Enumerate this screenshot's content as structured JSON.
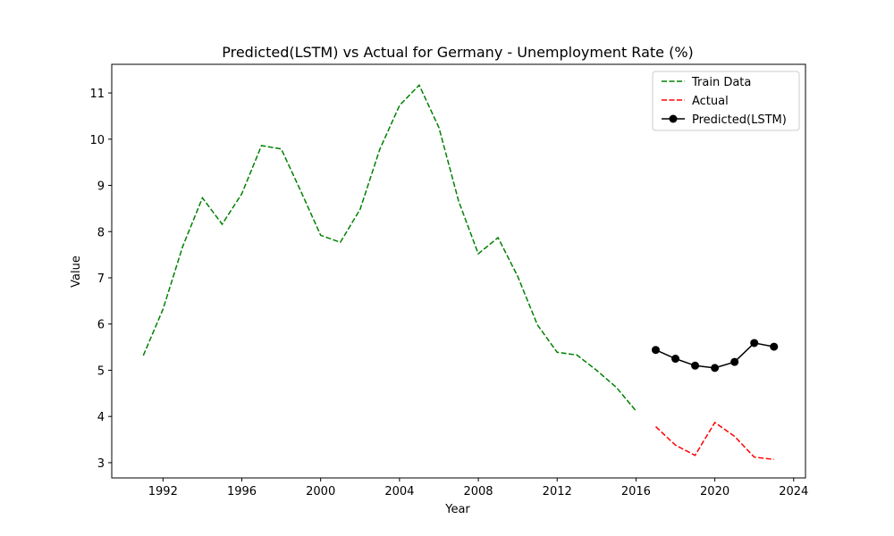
{
  "chart_data": {
    "type": "line",
    "title": "Predicted(LSTM) vs Actual for Germany - Unemployment Rate (%)",
    "xlabel": "Year",
    "ylabel": "Value",
    "xlim": [
      1989.4,
      2024.6
    ],
    "ylim": [
      2.67,
      11.62
    ],
    "x_ticks": [
      1992,
      1996,
      2000,
      2004,
      2008,
      2012,
      2016,
      2020,
      2024
    ],
    "y_ticks": [
      3,
      4,
      5,
      6,
      7,
      8,
      9,
      10,
      11
    ],
    "grid": false,
    "legend_position": "top-right",
    "series": [
      {
        "name": "Train Data",
        "color": "#008000",
        "style": "dashed",
        "marker": "none",
        "x": [
          1991,
          1992,
          1993,
          1994,
          1995,
          1996,
          1997,
          1998,
          1999,
          2000,
          2001,
          2002,
          2003,
          2004,
          2005,
          2006,
          2007,
          2008,
          2009,
          2010,
          2011,
          2012,
          2013,
          2014,
          2015,
          2016
        ],
        "y": [
          5.32,
          6.32,
          7.68,
          8.73,
          8.16,
          8.82,
          9.86,
          9.79,
          8.87,
          7.92,
          7.77,
          8.48,
          9.78,
          10.73,
          11.17,
          10.25,
          8.66,
          7.52,
          7.87,
          7.03,
          5.98,
          5.39,
          5.33,
          5.0,
          4.63,
          4.12
        ]
      },
      {
        "name": "Actual",
        "color": "#ff0000",
        "style": "dashed",
        "marker": "none",
        "x": [
          2017,
          2018,
          2019,
          2020,
          2021,
          2022,
          2023
        ],
        "y": [
          3.78,
          3.38,
          3.16,
          3.87,
          3.57,
          3.12,
          3.07
        ]
      },
      {
        "name": "Predicted(LSTM)",
        "color": "#000000",
        "style": "solid",
        "marker": "circle",
        "x": [
          2017,
          2018,
          2019,
          2020,
          2021,
          2022,
          2023
        ],
        "y": [
          5.44,
          5.25,
          5.1,
          5.05,
          5.18,
          5.59,
          5.51
        ]
      }
    ]
  }
}
